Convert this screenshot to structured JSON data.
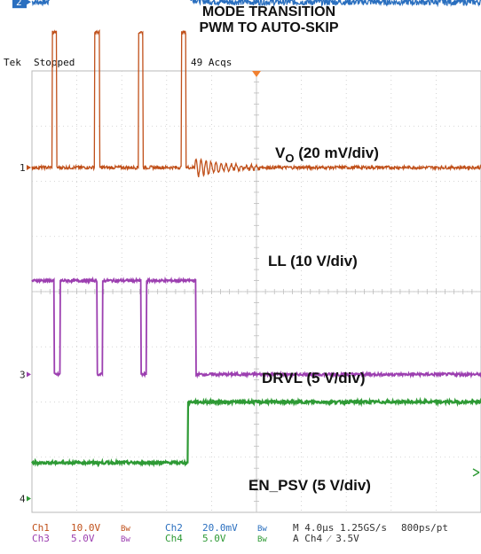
{
  "title": {
    "line1": "MODE TRANSITION",
    "line2": "PWM TO AUTO-SKIP"
  },
  "status": {
    "brand": "Tek",
    "state": "Stopped",
    "acqs": "49 Acqs"
  },
  "colors": {
    "ch1": "#c0501a",
    "ch2": "#2a6fbf",
    "ch3": "#9c3fb0",
    "ch4": "#2e9a35",
    "trigger_marker": "#f08030"
  },
  "chart_data": {
    "type": "line",
    "x_unit": "us",
    "x_per_div": 4.0,
    "divisions": {
      "x": 10,
      "y": 8
    },
    "grid": true,
    "series": [
      {
        "name": "V_O (20 mV/div)",
        "label_main": "V",
        "label_sub": "O",
        "label_rest": " (20 mV/div)",
        "channel": "2",
        "scale": "20.0mV",
        "reference_div": 5.25,
        "sawtooth_peaks_us": [
          2.0,
          5.8,
          9.6,
          13.5
        ],
        "peak_div": 1.3,
        "trough_div": 0.1,
        "steady_div": 0.0
      },
      {
        "name": "LL (10 V/div)",
        "label_main": "LL (10 V/div)",
        "channel": "1",
        "scale": "10.0V",
        "reference_div": 2.25,
        "pulses_us": [
          [
            1.8,
            2.2
          ],
          [
            5.6,
            6.0
          ],
          [
            9.5,
            9.9
          ],
          [
            13.3,
            13.7
          ]
        ],
        "pulse_div": 2.45,
        "ringing_start_us": 14.5,
        "ringing_end_us": 20.5
      },
      {
        "name": "DRVL (5 V/div)",
        "label_main": "DRVL (5 V/div)",
        "channel": "3",
        "scale": "5.0V",
        "reference_div": -1.5,
        "high_div": 1.7,
        "low_intervals_us": [
          [
            2.0,
            2.5
          ],
          [
            5.8,
            6.3
          ],
          [
            9.7,
            10.2
          ]
        ],
        "final_fall_us": 14.6
      },
      {
        "name": "EN_PSV (5 V/div)",
        "label_main": "EN_PSV (5 V/div)",
        "channel": "4",
        "scale": "5.0V",
        "reference_div": -3.75,
        "low_div": 0.65,
        "high_div": 1.75,
        "rise_us": 13.9
      }
    ],
    "readouts": {
      "row1": [
        "Ch1",
        "10.0V",
        "Bw",
        "Ch2",
        "20.0mV",
        "Bw",
        "M 4.0µs 1.25GS/s",
        "800ps/pt"
      ],
      "row2": [
        "Ch3",
        "5.0V",
        "Bw",
        "Ch4",
        "5.0V",
        "Bw",
        "A  Ch4  ⁄  3.5V"
      ]
    }
  }
}
